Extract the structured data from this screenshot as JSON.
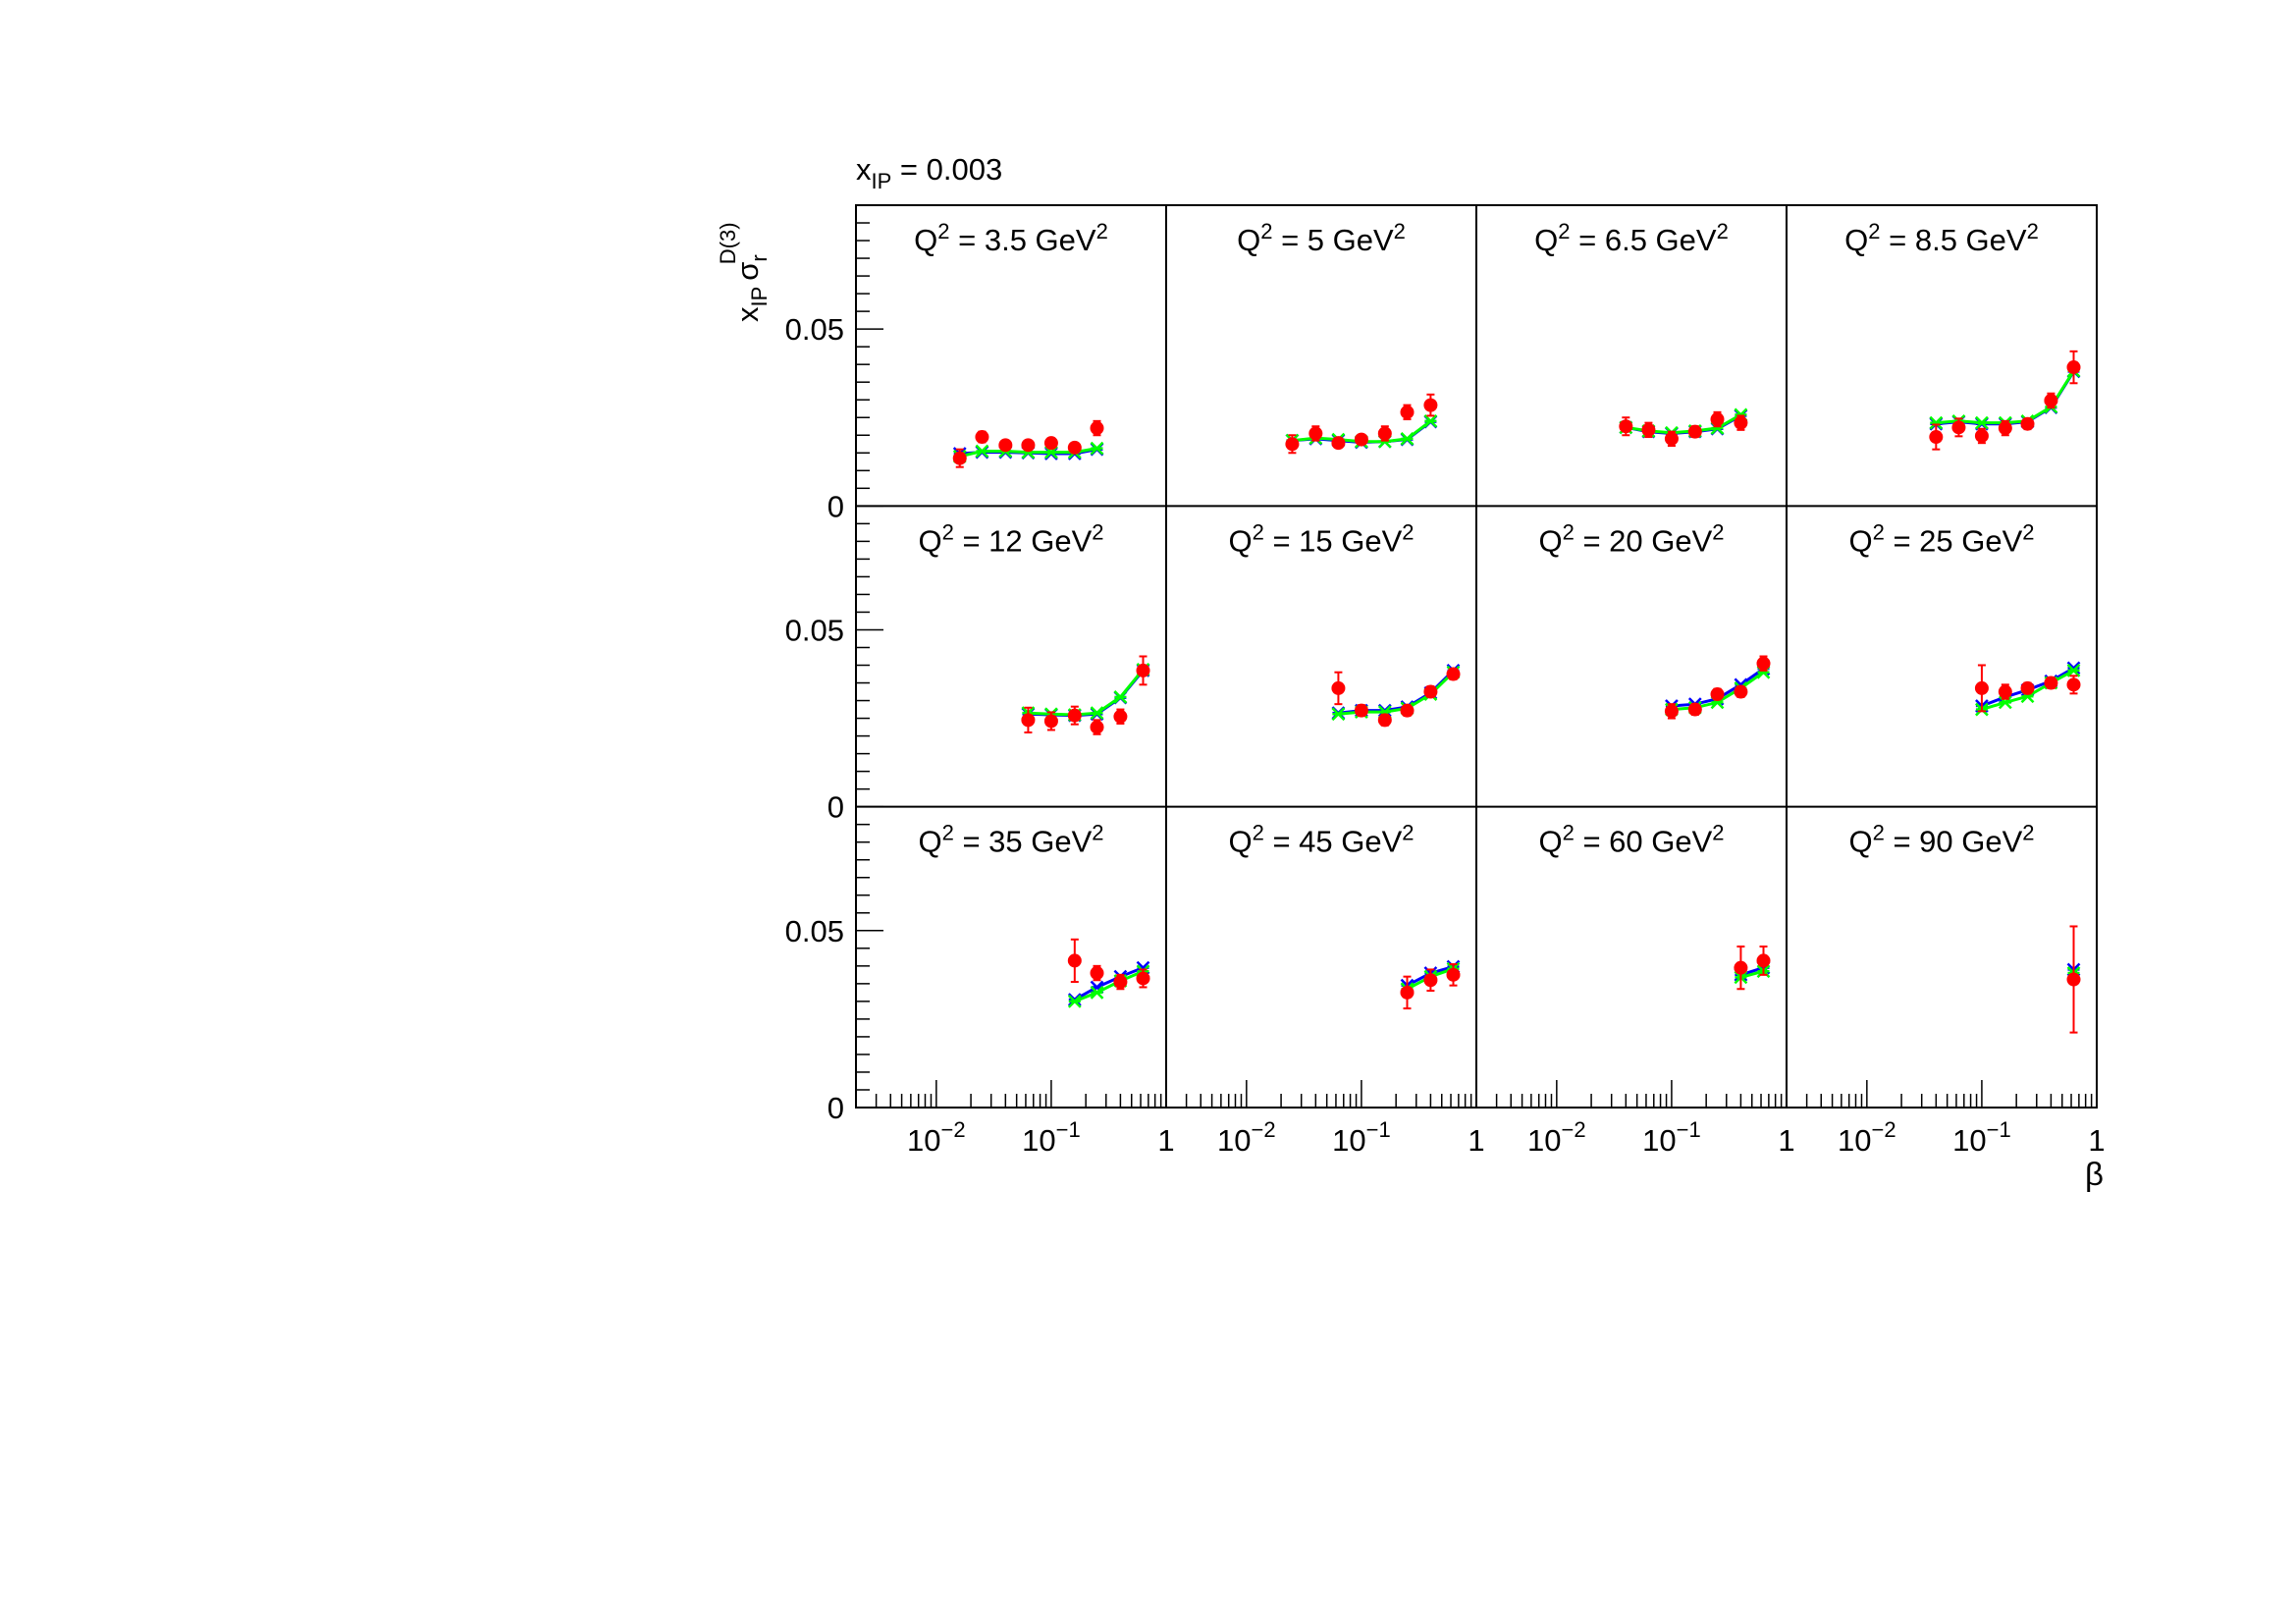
{
  "chart_data": {
    "type": "scatter",
    "title": "x_IP = 0.003",
    "title_parts": {
      "var": "x",
      "sub": "IP",
      "rest": " = 0.003"
    },
    "ylabel": {
      "x": "x",
      "xsub": "IP",
      "sigma": "σ",
      "sigsub": "r",
      "sigsup": "D(3)"
    },
    "xlabel": "β",
    "xscale": "log",
    "xlim": [
      0.002,
      1.0
    ],
    "ylim": [
      0,
      0.085
    ],
    "ytick_labels": [
      "0",
      "0.05"
    ],
    "xtick_labels": [
      {
        "base": "10",
        "exp": "−2"
      },
      {
        "base": "10",
        "exp": "−1"
      },
      {
        "base": "1",
        "exp": ""
      }
    ],
    "colors": {
      "data": "#ff0000",
      "model_blue": "#0000ff",
      "model_green": "#00ff00"
    },
    "panels": [
      {
        "q2_prefix": "Q",
        "q2_value": " = 3.5 GeV",
        "points": [
          [
            0.016,
            0.0135,
            0.0025
          ],
          [
            0.025,
            0.0195,
            0.0015
          ],
          [
            0.04,
            0.0172,
            0.0012
          ],
          [
            0.063,
            0.0172,
            0.0012
          ],
          [
            0.1,
            0.0178,
            0.0012
          ],
          [
            0.16,
            0.0165,
            0.0012
          ],
          [
            0.25,
            0.022,
            0.002
          ]
        ],
        "blue": [
          [
            0.016,
            0.0148
          ],
          [
            0.025,
            0.0152
          ],
          [
            0.04,
            0.0152
          ],
          [
            0.063,
            0.015
          ],
          [
            0.1,
            0.0148
          ],
          [
            0.16,
            0.0148
          ],
          [
            0.25,
            0.016
          ]
        ],
        "green": [
          [
            0.016,
            0.014
          ],
          [
            0.025,
            0.0155
          ],
          [
            0.04,
            0.0155
          ],
          [
            0.063,
            0.0152
          ],
          [
            0.1,
            0.0152
          ],
          [
            0.16,
            0.0152
          ],
          [
            0.25,
            0.0163
          ]
        ]
      },
      {
        "q2_prefix": "Q",
        "q2_value": " = 5 GeV",
        "points": [
          [
            0.025,
            0.0175,
            0.0025
          ],
          [
            0.04,
            0.0205,
            0.002
          ],
          [
            0.063,
            0.0178,
            0.0012
          ],
          [
            0.1,
            0.0188,
            0.0012
          ],
          [
            0.16,
            0.0205,
            0.002
          ],
          [
            0.25,
            0.0265,
            0.002
          ],
          [
            0.4,
            0.0285,
            0.003
          ]
        ],
        "blue": [
          [
            0.025,
            0.0185
          ],
          [
            0.04,
            0.019
          ],
          [
            0.063,
            0.0185
          ],
          [
            0.1,
            0.018
          ],
          [
            0.16,
            0.0182
          ],
          [
            0.25,
            0.0188
          ],
          [
            0.4,
            0.0238
          ]
        ],
        "green": [
          [
            0.025,
            0.0185
          ],
          [
            0.04,
            0.0192
          ],
          [
            0.063,
            0.0188
          ],
          [
            0.1,
            0.0182
          ],
          [
            0.16,
            0.0182
          ],
          [
            0.25,
            0.019
          ],
          [
            0.4,
            0.024
          ]
        ]
      },
      {
        "q2_prefix": "Q",
        "q2_value": " = 6.5 GeV",
        "points": [
          [
            0.04,
            0.0225,
            0.0025
          ],
          [
            0.063,
            0.0215,
            0.002
          ],
          [
            0.1,
            0.019,
            0.002
          ],
          [
            0.16,
            0.021,
            0.0015
          ],
          [
            0.25,
            0.0245,
            0.002
          ],
          [
            0.4,
            0.0235,
            0.002
          ]
        ],
        "blue": [
          [
            0.04,
            0.0222
          ],
          [
            0.063,
            0.021
          ],
          [
            0.1,
            0.0205
          ],
          [
            0.16,
            0.021
          ],
          [
            0.25,
            0.0218
          ],
          [
            0.4,
            0.0255
          ]
        ],
        "green": [
          [
            0.04,
            0.0222
          ],
          [
            0.063,
            0.0212
          ],
          [
            0.1,
            0.0207
          ],
          [
            0.16,
            0.0212
          ],
          [
            0.25,
            0.022
          ],
          [
            0.4,
            0.0258
          ]
        ]
      },
      {
        "q2_prefix": "Q",
        "q2_value": " = 8.5 GeV",
        "points": [
          [
            0.04,
            0.0195,
            0.0035
          ],
          [
            0.063,
            0.0222,
            0.0025
          ],
          [
            0.1,
            0.0198,
            0.002
          ],
          [
            0.16,
            0.022,
            0.002
          ],
          [
            0.25,
            0.0232,
            0.0015
          ],
          [
            0.4,
            0.0298,
            0.002
          ],
          [
            0.63,
            0.0392,
            0.0045
          ]
        ],
        "blue": [
          [
            0.04,
            0.0232
          ],
          [
            0.063,
            0.0238
          ],
          [
            0.1,
            0.0232
          ],
          [
            0.16,
            0.0232
          ],
          [
            0.25,
            0.0238
          ],
          [
            0.4,
            0.0278
          ],
          [
            0.63,
            0.038
          ]
        ],
        "green": [
          [
            0.04,
            0.0235
          ],
          [
            0.063,
            0.024
          ],
          [
            0.1,
            0.0235
          ],
          [
            0.16,
            0.0235
          ],
          [
            0.25,
            0.024
          ],
          [
            0.4,
            0.028
          ],
          [
            0.63,
            0.0382
          ]
        ]
      },
      {
        "q2_prefix": "Q",
        "q2_value": " = 12 GeV",
        "points": [
          [
            0.063,
            0.0245,
            0.0035
          ],
          [
            0.1,
            0.0242,
            0.0025
          ],
          [
            0.16,
            0.0258,
            0.0025
          ],
          [
            0.25,
            0.0225,
            0.002
          ],
          [
            0.4,
            0.0255,
            0.002
          ],
          [
            0.63,
            0.0385,
            0.004
          ]
        ],
        "blue": [
          [
            0.063,
            0.0262
          ],
          [
            0.1,
            0.026
          ],
          [
            0.16,
            0.0258
          ],
          [
            0.25,
            0.0262
          ],
          [
            0.4,
            0.0308
          ],
          [
            0.63,
            0.0385
          ]
        ],
        "green": [
          [
            0.063,
            0.0265
          ],
          [
            0.1,
            0.0262
          ],
          [
            0.16,
            0.026
          ],
          [
            0.25,
            0.0265
          ],
          [
            0.4,
            0.031
          ],
          [
            0.63,
            0.0388
          ]
        ]
      },
      {
        "q2_prefix": "Q",
        "q2_value": " = 15 GeV",
        "points": [
          [
            0.063,
            0.0335,
            0.0045
          ],
          [
            0.1,
            0.0272,
            0.0015
          ],
          [
            0.16,
            0.0245,
            0.0015
          ],
          [
            0.25,
            0.0272,
            0.0015
          ],
          [
            0.4,
            0.0325,
            0.0015
          ],
          [
            0.63,
            0.0375,
            0.0015
          ]
        ],
        "blue": [
          [
            0.063,
            0.0265
          ],
          [
            0.1,
            0.0272
          ],
          [
            0.16,
            0.0272
          ],
          [
            0.25,
            0.0282
          ],
          [
            0.4,
            0.0322
          ],
          [
            0.63,
            0.0385
          ]
        ],
        "green": [
          [
            0.063,
            0.0262
          ],
          [
            0.1,
            0.0268
          ],
          [
            0.16,
            0.0268
          ],
          [
            0.25,
            0.0278
          ],
          [
            0.4,
            0.0318
          ],
          [
            0.63,
            0.038
          ]
        ]
      },
      {
        "q2_prefix": "Q",
        "q2_value": " = 20 GeV",
        "points": [
          [
            0.1,
            0.027,
            0.002
          ],
          [
            0.16,
            0.0275,
            0.0015
          ],
          [
            0.25,
            0.0318,
            0.0015
          ],
          [
            0.4,
            0.0325,
            0.0015
          ],
          [
            0.63,
            0.0405,
            0.002
          ]
        ],
        "blue": [
          [
            0.1,
            0.0285
          ],
          [
            0.16,
            0.029
          ],
          [
            0.25,
            0.0305
          ],
          [
            0.4,
            0.0345
          ],
          [
            0.63,
            0.039
          ]
        ],
        "green": [
          [
            0.1,
            0.0275
          ],
          [
            0.16,
            0.028
          ],
          [
            0.25,
            0.0295
          ],
          [
            0.4,
            0.0335
          ],
          [
            0.63,
            0.038
          ]
        ]
      },
      {
        "q2_prefix": "Q",
        "q2_value": " = 25 GeV",
        "points": [
          [
            0.1,
            0.0335,
            0.0065
          ],
          [
            0.16,
            0.0325,
            0.002
          ],
          [
            0.25,
            0.0335,
            0.0015
          ],
          [
            0.4,
            0.035,
            0.0015
          ],
          [
            0.63,
            0.0345,
            0.0025
          ]
        ],
        "blue": [
          [
            0.1,
            0.0285
          ],
          [
            0.16,
            0.031
          ],
          [
            0.25,
            0.033
          ],
          [
            0.4,
            0.0355
          ],
          [
            0.63,
            0.0392
          ]
        ],
        "green": [
          [
            0.1,
            0.0275
          ],
          [
            0.16,
            0.0295
          ],
          [
            0.25,
            0.0312
          ],
          [
            0.4,
            0.035
          ],
          [
            0.63,
            0.0385
          ]
        ]
      },
      {
        "q2_prefix": "Q",
        "q2_value": " = 35 GeV",
        "points": [
          [
            0.16,
            0.0415,
            0.006
          ],
          [
            0.25,
            0.038,
            0.002
          ],
          [
            0.4,
            0.0355,
            0.002
          ],
          [
            0.63,
            0.0365,
            0.0025
          ]
        ],
        "blue": [
          [
            0.16,
            0.0305
          ],
          [
            0.25,
            0.034
          ],
          [
            0.4,
            0.037
          ],
          [
            0.63,
            0.0395
          ]
        ],
        "green": [
          [
            0.16,
            0.03
          ],
          [
            0.25,
            0.0325
          ],
          [
            0.4,
            0.0358
          ],
          [
            0.63,
            0.0385
          ]
        ]
      },
      {
        "q2_prefix": "Q",
        "q2_value": " = 45 GeV",
        "points": [
          [
            0.25,
            0.0325,
            0.0045
          ],
          [
            0.4,
            0.036,
            0.003
          ],
          [
            0.63,
            0.0375,
            0.003
          ]
        ],
        "blue": [
          [
            0.25,
            0.0345
          ],
          [
            0.4,
            0.038
          ],
          [
            0.63,
            0.0398
          ]
        ],
        "green": [
          [
            0.25,
            0.0335
          ],
          [
            0.4,
            0.037
          ],
          [
            0.63,
            0.0392
          ]
        ]
      },
      {
        "q2_prefix": "Q",
        "q2_value": " = 60 GeV",
        "points": [
          [
            0.4,
            0.0395,
            0.006
          ],
          [
            0.63,
            0.0415,
            0.004
          ]
        ],
        "blue": [
          [
            0.4,
            0.0375
          ],
          [
            0.63,
            0.0395
          ]
        ],
        "green": [
          [
            0.4,
            0.0368
          ],
          [
            0.63,
            0.0385
          ]
        ]
      },
      {
        "q2_prefix": "Q",
        "q2_value": " = 90 GeV",
        "points": [
          [
            0.63,
            0.0362,
            0.015
          ]
        ],
        "blue": [
          [
            0.63,
            0.039
          ]
        ],
        "green": [
          [
            0.63,
            0.038
          ]
        ]
      }
    ]
  }
}
